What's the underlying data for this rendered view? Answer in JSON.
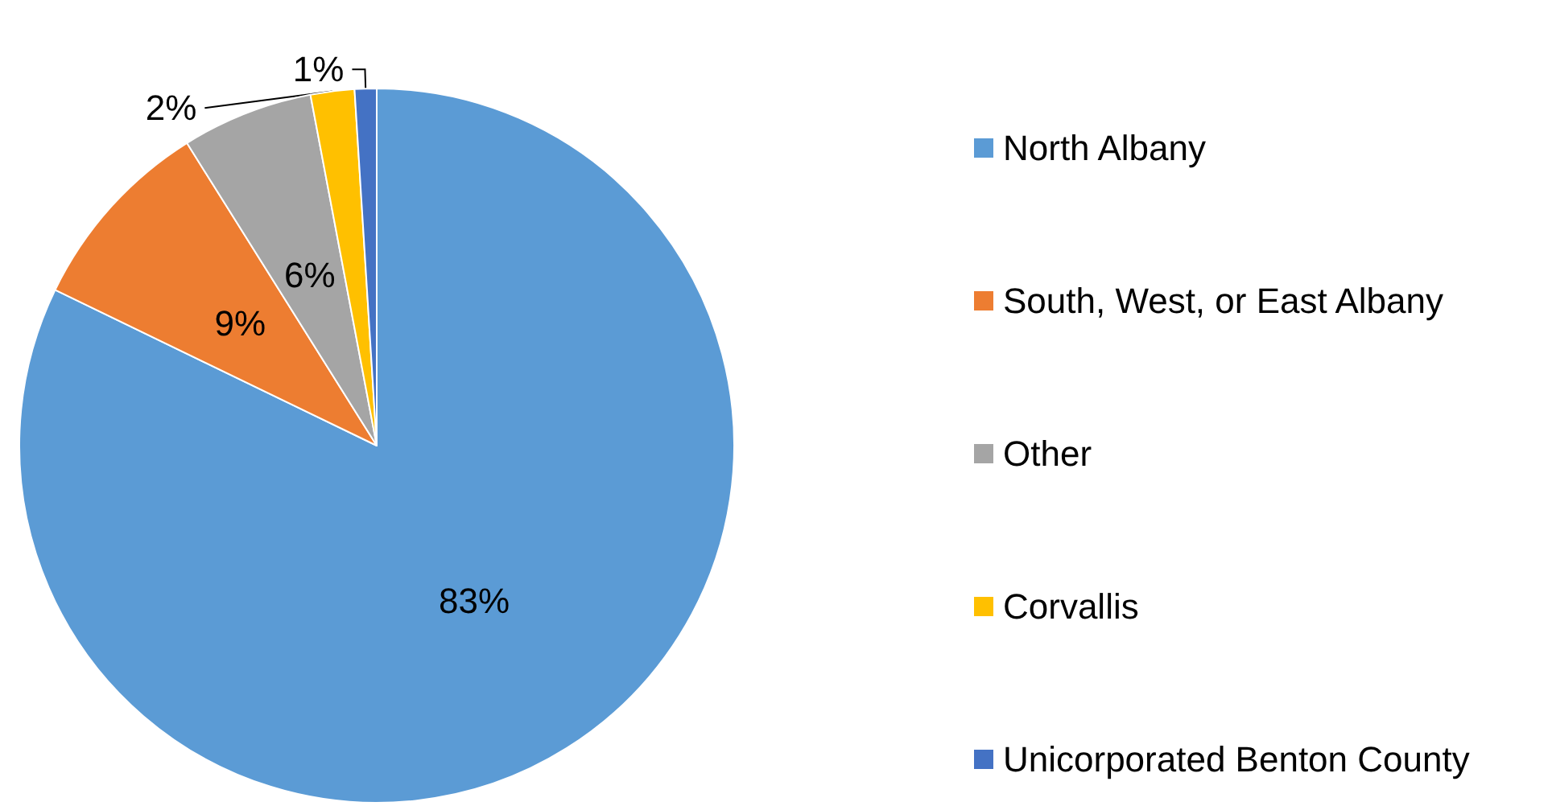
{
  "chart_data": {
    "type": "pie",
    "categories": [
      "North Albany",
      "South, West, or East Albany",
      "Other",
      "Corvallis",
      "Unicorporated Benton County"
    ],
    "values": [
      83,
      9,
      6,
      2,
      1
    ],
    "colors": [
      "#5b9bd5",
      "#ed7d31",
      "#a5a5a5",
      "#ffc000",
      "#4472c4"
    ],
    "value_labels": [
      "83%",
      "9%",
      "6%",
      "2%",
      "1%"
    ],
    "legend": "right"
  }
}
